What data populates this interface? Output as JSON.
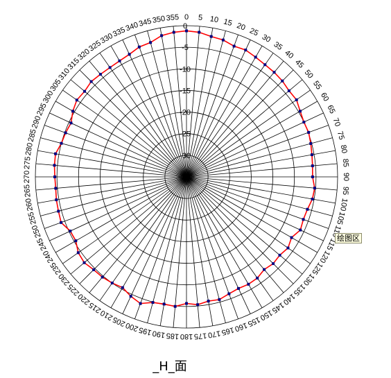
{
  "chart_data": {
    "type": "radar",
    "title": "_H_面",
    "angle_unit": "degrees",
    "angles": [
      0,
      5,
      10,
      15,
      20,
      25,
      30,
      35,
      40,
      45,
      50,
      55,
      60,
      65,
      70,
      75,
      80,
      85,
      90,
      95,
      100,
      105,
      110,
      115,
      120,
      125,
      130,
      135,
      140,
      145,
      150,
      155,
      160,
      165,
      170,
      175,
      180,
      185,
      190,
      195,
      200,
      205,
      210,
      215,
      220,
      225,
      230,
      235,
      240,
      245,
      250,
      255,
      260,
      265,
      270,
      275,
      280,
      285,
      290,
      295,
      300,
      305,
      310,
      315,
      320,
      325,
      330,
      335,
      340,
      345,
      350,
      355
    ],
    "radial_ticks": [
      0,
      -5,
      -10,
      -15,
      -20,
      -25,
      -30,
      -35
    ],
    "rlim": [
      -35,
      0
    ],
    "series": [
      {
        "values": [
          -1.2,
          -1.4,
          -2.0,
          -2.2,
          -2.8,
          -2.6,
          -3.0,
          -3.3,
          -3.4,
          -3.6,
          -4.0,
          -3.9,
          -4.6,
          -5.0,
          -4.9,
          -5.2,
          -5.5,
          -5.7,
          -5.8,
          -5.2,
          -5.4,
          -6.0,
          -6.2,
          -5.9,
          -6.9,
          -6.3,
          -6.8,
          -6.6,
          -7.0,
          -6.4,
          -6.3,
          -6.5,
          -6.2,
          -5.6,
          -5.8,
          -5.3,
          -5.7,
          -4.9,
          -5.1,
          -4.9,
          -3.8,
          -4.5,
          -5.4,
          -5.0,
          -4.7,
          -4.6,
          -4.1,
          -4.4,
          -5.4,
          -5.3,
          -4.1,
          -4.3,
          -4.4,
          -4.6,
          -4.5,
          -4.3,
          -4.2,
          -5.0,
          -5.2,
          -5.5,
          -4.6,
          -4.0,
          -4.2,
          -3.8,
          -4.0,
          -4.1,
          -4.0,
          -3.7,
          -3.0,
          -2.8,
          -1.8,
          -1.4
        ],
        "line_color": "#ff0000",
        "marker_color": "#000080"
      }
    ],
    "grid": true,
    "legend": false
  },
  "tooltip": {
    "label": "绘图区"
  },
  "colors": {
    "grid": "#000000",
    "line": "#ff0000",
    "marker": "#000080"
  }
}
